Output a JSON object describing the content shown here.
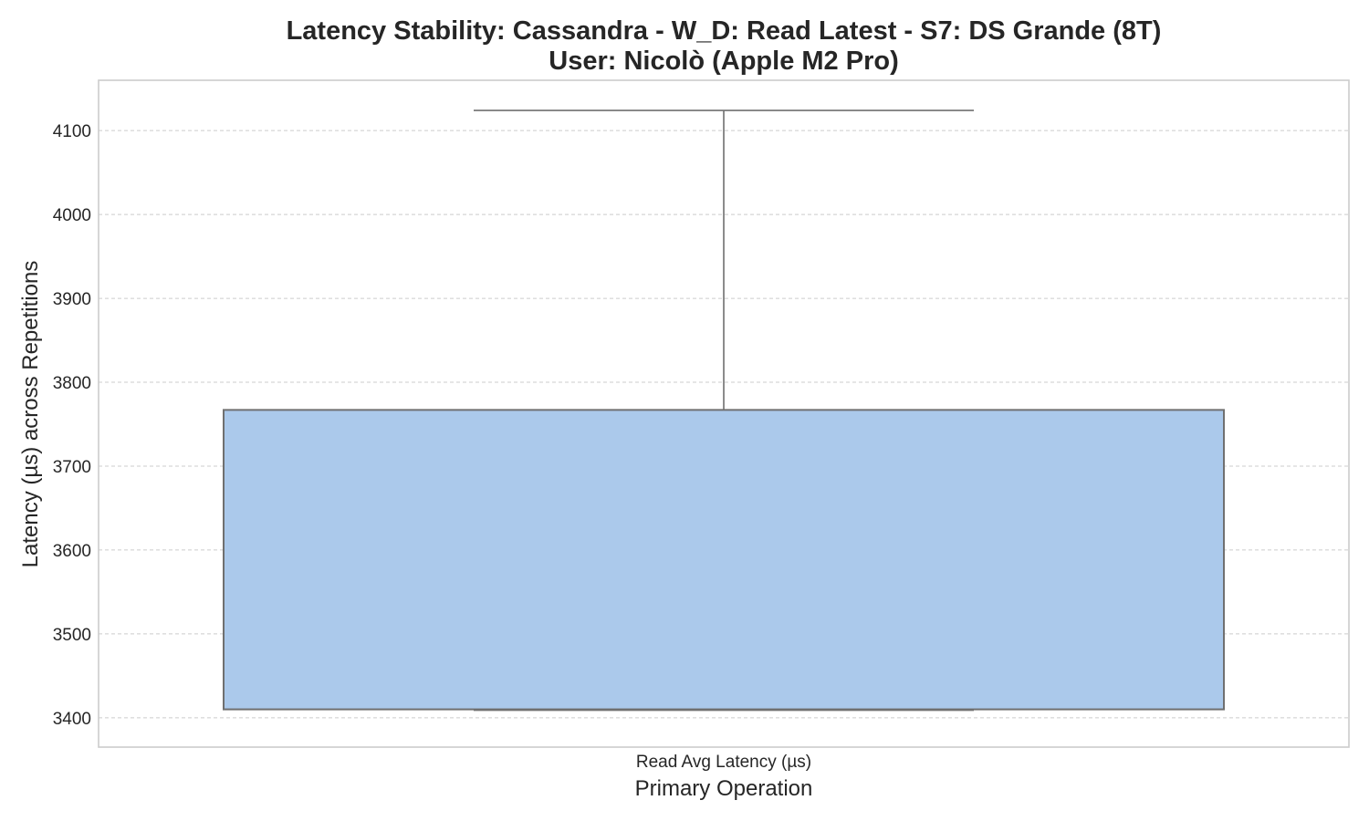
{
  "chart_data": {
    "type": "box",
    "title_line1": "Latency Stability: Cassandra - W_D: Read Latest - S7: DS Grande (8T)",
    "title_line2": "User: Nicolò (Apple M2 Pro)",
    "xlabel": "Primary Operation",
    "ylabel": "Latency (µs) across Repetitions",
    "categories": [
      "Read Avg Latency (µs)"
    ],
    "ylim": [
      3365,
      4160
    ],
    "yticks": [
      3400,
      3500,
      3600,
      3700,
      3800,
      3900,
      4000,
      4100
    ],
    "grid": true,
    "boxes": [
      {
        "category": "Read Avg Latency (µs)",
        "whisker_low": 3409,
        "q1": 3410,
        "median": 3410,
        "q3": 3767,
        "whisker_high": 4124
      }
    ],
    "colors": {
      "box_fill": "#abc9eb",
      "box_edge": "#707070"
    }
  }
}
